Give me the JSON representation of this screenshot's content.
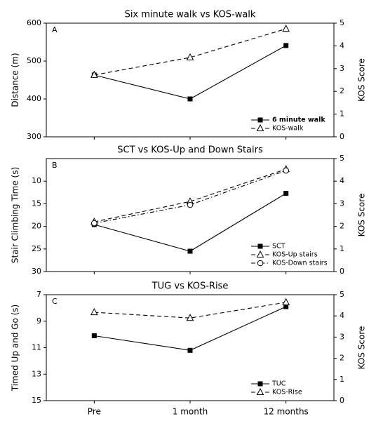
{
  "chart_data": [
    {
      "type": "line",
      "panel": "A",
      "title": "Six minute walk vs KOS-walk",
      "ylabel": "Distance (m)",
      "y2label": "KOS Score",
      "ylim": [
        300,
        600
      ],
      "yticks": [
        300,
        400,
        500,
        600
      ],
      "y2lim": [
        0,
        5
      ],
      "y2ticks": [
        0,
        1,
        2,
        3,
        4,
        5
      ],
      "y_inverted": false,
      "series": [
        {
          "name": "6 minute walk",
          "color": "#000000",
          "marker": "square",
          "dash": "solid",
          "axis": "y",
          "values": [
            463,
            400,
            541
          ]
        },
        {
          "name": "KOS-walk",
          "color": "#000000",
          "marker": "triangle",
          "dash": "dashed",
          "axis": "y2",
          "values": [
            2.72,
            3.49,
            4.75
          ]
        }
      ]
    },
    {
      "type": "line",
      "panel": "B",
      "title": "SCT vs KOS-Up and Down Stairs",
      "ylabel": "Stair Climbing Time (s)",
      "y2label": "KOS Score",
      "ylim": [
        5,
        30
      ],
      "yticks": [
        10,
        15,
        20,
        25,
        30
      ],
      "y2lim": [
        0,
        5
      ],
      "y2ticks": [
        0,
        1,
        2,
        3,
        4,
        5
      ],
      "y_inverted": true,
      "series": [
        {
          "name": "SCT",
          "color": "#000000",
          "marker": "square",
          "dash": "solid",
          "axis": "y",
          "values": [
            19.6,
            25.5,
            12.7
          ]
        },
        {
          "name": "KOS-Up stairs",
          "color": "#000000",
          "marker": "triangle",
          "dash": "dashed",
          "axis": "y2",
          "values": [
            2.2,
            3.1,
            4.53
          ]
        },
        {
          "name": "KOS-Down stairs",
          "color": "#000000",
          "marker": "circle",
          "dash": "dashdot",
          "axis": "y2",
          "values": [
            2.14,
            2.95,
            4.47
          ]
        }
      ]
    },
    {
      "type": "line",
      "panel": "C",
      "title": "TUG vs KOS-Rise",
      "ylabel": "Timed Up and Go (s)",
      "y2label": "KOS Score",
      "ylim": [
        7,
        15
      ],
      "yticks": [
        7,
        9,
        11,
        13,
        15
      ],
      "y2lim": [
        0,
        5
      ],
      "y2ticks": [
        0,
        1,
        2,
        3,
        4,
        5
      ],
      "y_inverted": true,
      "categories": [
        "Pre",
        "1 month",
        "12 months"
      ],
      "series": [
        {
          "name": "TUC",
          "color": "#000000",
          "marker": "square",
          "dash": "solid",
          "axis": "y",
          "values": [
            10.1,
            11.2,
            7.9
          ]
        },
        {
          "name": "KOS-Rise",
          "color": "#000000",
          "marker": "triangle",
          "dash": "dashed",
          "axis": "y2",
          "values": [
            4.17,
            3.9,
            4.64
          ]
        }
      ]
    }
  ]
}
